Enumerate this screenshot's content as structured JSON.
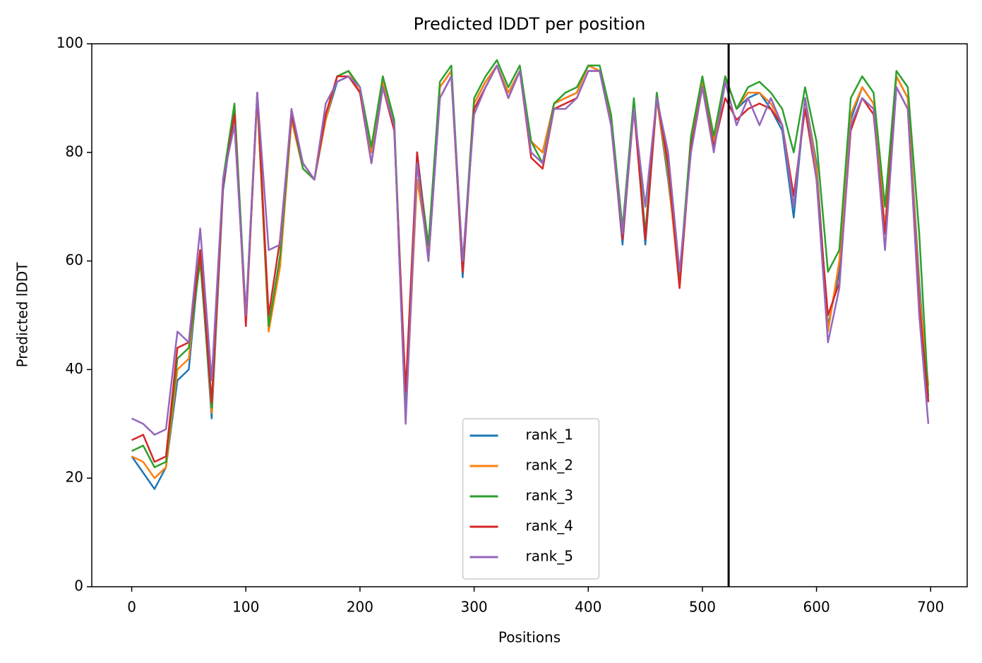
{
  "chart_data": {
    "type": "line",
    "title": "Predicted lDDT per position",
    "xlabel": "Positions",
    "ylabel": "Predicted lDDT",
    "x": [
      0,
      10,
      20,
      30,
      40,
      50,
      60,
      70,
      80,
      90,
      100,
      110,
      120,
      130,
      140,
      150,
      160,
      170,
      180,
      190,
      200,
      210,
      220,
      230,
      240,
      250,
      260,
      270,
      280,
      290,
      300,
      310,
      320,
      330,
      340,
      350,
      360,
      370,
      380,
      390,
      400,
      410,
      420,
      430,
      440,
      450,
      460,
      470,
      480,
      490,
      500,
      510,
      520,
      530,
      540,
      550,
      560,
      570,
      580,
      590,
      600,
      610,
      620,
      630,
      640,
      650,
      660,
      670,
      680,
      690,
      698
    ],
    "series": [
      {
        "name": "rank_1",
        "color": "#1f77b4",
        "values": [
          24,
          21,
          18,
          22,
          38,
          40,
          62,
          31,
          73,
          88,
          49,
          90,
          48,
          60,
          86,
          78,
          75,
          86,
          93,
          94,
          91,
          80,
          93,
          85,
          31,
          80,
          62,
          92,
          95,
          57,
          89,
          93,
          96,
          91,
          95,
          82,
          80,
          89,
          90,
          91,
          96,
          95,
          86,
          63,
          89,
          63,
          90,
          75,
          57,
          82,
          93,
          82,
          94,
          88,
          90,
          91,
          88,
          84,
          68,
          90,
          78,
          48,
          58,
          86,
          92,
          89,
          66,
          94,
          90,
          56,
          34
        ]
      },
      {
        "name": "rank_2",
        "color": "#ff7f0e",
        "values": [
          24,
          23,
          20,
          22,
          40,
          42,
          62,
          32,
          74,
          88,
          49,
          90,
          47,
          59,
          86,
          77,
          75,
          86,
          94,
          95,
          91,
          80,
          93,
          85,
          31,
          75,
          62,
          92,
          95,
          58,
          89,
          93,
          96,
          91,
          95,
          82,
          80,
          89,
          90,
          91,
          96,
          95,
          86,
          64,
          89,
          64,
          90,
          76,
          55,
          82,
          93,
          82,
          94,
          88,
          91,
          91,
          89,
          85,
          70,
          90,
          77,
          47,
          60,
          87,
          92,
          89,
          66,
          94,
          90,
          54,
          37
        ]
      },
      {
        "name": "rank_3",
        "color": "#2ca02c",
        "values": [
          25,
          26,
          22,
          23,
          42,
          44,
          60,
          33,
          75,
          89,
          50,
          91,
          48,
          61,
          87,
          77,
          75,
          87,
          94,
          95,
          92,
          81,
          94,
          86,
          33,
          79,
          63,
          93,
          96,
          59,
          90,
          94,
          97,
          92,
          96,
          82,
          78,
          89,
          91,
          92,
          96,
          96,
          87,
          66,
          90,
          65,
          91,
          77,
          57,
          83,
          94,
          83,
          94,
          88,
          92,
          93,
          91,
          88,
          80,
          92,
          82,
          58,
          62,
          90,
          94,
          91,
          70,
          95,
          92,
          65,
          35
        ]
      },
      {
        "name": "rank_4",
        "color": "#d62728",
        "values": [
          27,
          28,
          23,
          24,
          44,
          45,
          62,
          34,
          74,
          87,
          48,
          91,
          50,
          64,
          87,
          78,
          75,
          87,
          94,
          94,
          91,
          78,
          92,
          84,
          36,
          80,
          60,
          90,
          94,
          58,
          88,
          92,
          96,
          90,
          95,
          79,
          77,
          88,
          89,
          90,
          95,
          95,
          85,
          64,
          88,
          64,
          90,
          78,
          55,
          81,
          92,
          81,
          90,
          86,
          88,
          89,
          88,
          85,
          72,
          88,
          75,
          50,
          56,
          84,
          90,
          87,
          65,
          92,
          88,
          52,
          34
        ]
      },
      {
        "name": "rank_5",
        "color": "#9467bd",
        "values": [
          31,
          30,
          28,
          29,
          47,
          45,
          66,
          38,
          75,
          85,
          50,
          91,
          62,
          63,
          88,
          78,
          75,
          89,
          93,
          94,
          92,
          78,
          92,
          85,
          30,
          78,
          60,
          90,
          94,
          60,
          87,
          92,
          96,
          90,
          95,
          80,
          78,
          88,
          88,
          90,
          95,
          95,
          85,
          65,
          88,
          70,
          90,
          80,
          58,
          80,
          92,
          80,
          93,
          85,
          90,
          85,
          90,
          85,
          70,
          90,
          75,
          45,
          55,
          85,
          90,
          88,
          62,
          92,
          88,
          50,
          30
        ]
      }
    ],
    "vline_x": 523,
    "xlim": [
      -35,
      732
    ],
    "ylim": [
      0,
      100
    ],
    "xticks": [
      0,
      100,
      200,
      300,
      400,
      500,
      600,
      700
    ],
    "yticks": [
      0,
      20,
      40,
      60,
      80,
      100
    ],
    "legend": "lower center"
  }
}
